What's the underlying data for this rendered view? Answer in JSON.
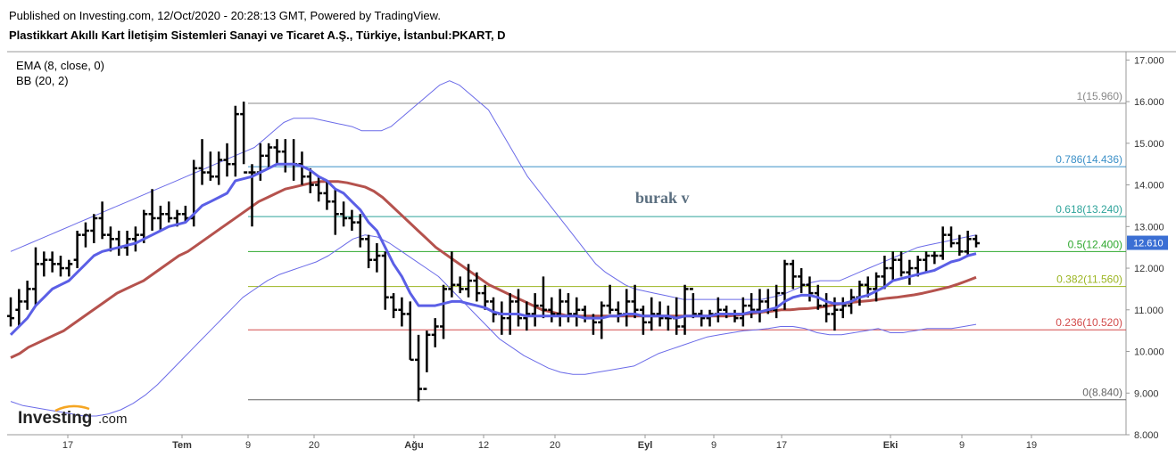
{
  "header": {
    "published": "Published on Investing.com, 12/Oct/2020 - 20:28:13 GMT, Powered by TradingView.",
    "title": "Plastikkart Akıllı Kart İletişim Sistemleri Sanayi ve Ticaret A.Ş., Türkiye, İstanbul:PKART, D"
  },
  "indicators": [
    "EMA (8, close, 0)",
    "BB (20, 2)"
  ],
  "logo": {
    "main": "Investing",
    "suffix": ".com"
  },
  "annotation": "burak v",
  "colors": {
    "price": "#000000",
    "ema": "#5b5fe6",
    "bb_mid": "#b5524d",
    "bb_band": "#6b6be8",
    "fib_1": "#888888",
    "fib_0786": "#3a8fc7",
    "fib_0618": "#2da39a",
    "fib_05": "#2ea82e",
    "fib_0382": "#9bb521",
    "fib_0236": "#d24a4a",
    "fib_0": "#666666",
    "last_price_bg": "#3b6fd4"
  },
  "chart_data": {
    "type": "ohlc",
    "title": "Plastikkart Akıllı Kart İletişim Sistemleri Sanayi ve Ticaret A.Ş., Türkiye, İstanbul:PKART, D",
    "x_ticks": [
      "17",
      "Tem",
      "9",
      "20",
      "Ağu",
      "12",
      "20",
      "Eyl",
      "9",
      "17",
      "Eki",
      "9",
      "19"
    ],
    "bold_x_ticks": [
      "Tem",
      "Ağu",
      "Eyl",
      "Eki"
    ],
    "ylim": [
      8.0,
      17.2
    ],
    "y_ticks": [
      "8.000",
      "9.000",
      "10.000",
      "11.000",
      "12.000",
      "13.000",
      "14.000",
      "15.000",
      "16.000",
      "17.000"
    ],
    "last_price": "12.610",
    "fibonacci": [
      {
        "label": "1(15.960)",
        "value": 15.96
      },
      {
        "label": "0.786(14.436)",
        "value": 14.436
      },
      {
        "label": "0.618(13.240)",
        "value": 13.24
      },
      {
        "label": "0.5(12.400)",
        "value": 12.4
      },
      {
        "label": "0.382(11.560)",
        "value": 11.56
      },
      {
        "label": "0.236(10.520)",
        "value": 10.52
      },
      {
        "label": "0(8.840)",
        "value": 8.84
      }
    ],
    "bars": [
      [
        10.85,
        10.6,
        11.3,
        10.8
      ],
      [
        11.0,
        10.6,
        11.5,
        11.2
      ],
      [
        11.2,
        11.0,
        11.7,
        11.5
      ],
      [
        11.5,
        11.1,
        12.5,
        12.1
      ],
      [
        12.1,
        11.8,
        12.4,
        12.2
      ],
      [
        12.2,
        11.9,
        12.4,
        12.1
      ],
      [
        12.1,
        11.8,
        12.3,
        12.0
      ],
      [
        12.0,
        11.8,
        12.2,
        12.1
      ],
      [
        12.2,
        12.0,
        12.9,
        12.8
      ],
      [
        12.8,
        12.5,
        13.1,
        12.9
      ],
      [
        12.9,
        12.6,
        13.3,
        13.2
      ],
      [
        13.2,
        12.7,
        13.6,
        12.8
      ],
      [
        12.8,
        12.4,
        13.0,
        12.7
      ],
      [
        12.7,
        12.3,
        12.9,
        12.5
      ],
      [
        12.5,
        12.3,
        12.9,
        12.7
      ],
      [
        12.7,
        12.4,
        13.0,
        12.8
      ],
      [
        12.8,
        12.6,
        13.4,
        13.3
      ],
      [
        13.3,
        12.9,
        13.9,
        13.2
      ],
      [
        13.2,
        12.9,
        13.5,
        13.3
      ],
      [
        13.3,
        13.1,
        13.6,
        13.2
      ],
      [
        13.2,
        13.0,
        13.4,
        13.3
      ],
      [
        13.3,
        13.1,
        13.5,
        13.2
      ],
      [
        13.2,
        13.0,
        14.6,
        14.4
      ],
      [
        14.4,
        14.0,
        15.1,
        14.3
      ],
      [
        14.3,
        14.1,
        14.8,
        14.2
      ],
      [
        14.2,
        14.0,
        14.8,
        14.6
      ],
      [
        14.6,
        14.2,
        15.0,
        14.5
      ],
      [
        14.5,
        14.2,
        15.9,
        15.7
      ],
      [
        15.7,
        14.5,
        16.0,
        14.3
      ],
      [
        14.3,
        13.0,
        14.5,
        14.3
      ],
      [
        14.3,
        14.1,
        15.0,
        14.7
      ],
      [
        14.7,
        14.4,
        15.0,
        14.9
      ],
      [
        14.9,
        14.5,
        15.1,
        14.8
      ],
      [
        14.8,
        14.3,
        15.1,
        14.5
      ],
      [
        14.5,
        14.1,
        15.1,
        14.5
      ],
      [
        14.5,
        14.0,
        14.8,
        14.2
      ],
      [
        14.2,
        13.8,
        14.4,
        14.0
      ],
      [
        14.0,
        13.6,
        14.2,
        13.8
      ],
      [
        13.8,
        13.4,
        14.1,
        13.6
      ],
      [
        13.6,
        12.8,
        13.9,
        13.3
      ],
      [
        13.3,
        13.0,
        13.6,
        13.2
      ],
      [
        13.2,
        12.9,
        13.4,
        13.1
      ],
      [
        13.1,
        12.5,
        13.3,
        12.7
      ],
      [
        12.7,
        12.0,
        12.8,
        12.2
      ],
      [
        12.2,
        11.9,
        12.6,
        12.3
      ],
      [
        12.3,
        11.0,
        12.4,
        11.3
      ],
      [
        11.3,
        10.8,
        11.4,
        11.0
      ],
      [
        11.0,
        10.6,
        11.3,
        10.9
      ],
      [
        10.9,
        9.8,
        11.2,
        9.8
      ],
      [
        9.8,
        8.8,
        10.4,
        9.1
      ],
      [
        9.1,
        9.5,
        10.5,
        10.4
      ],
      [
        10.4,
        10.1,
        10.8,
        10.6
      ],
      [
        10.6,
        10.3,
        11.6,
        11.5
      ],
      [
        11.5,
        11.3,
        12.4,
        11.6
      ],
      [
        11.6,
        11.4,
        11.8,
        11.5
      ],
      [
        11.5,
        11.3,
        12.1,
        11.7
      ],
      [
        11.7,
        11.2,
        11.9,
        11.4
      ],
      [
        11.4,
        11.0,
        11.6,
        11.2
      ],
      [
        11.2,
        10.7,
        11.3,
        10.9
      ],
      [
        10.9,
        10.4,
        11.2,
        10.8
      ],
      [
        10.8,
        10.4,
        11.4,
        11.2
      ],
      [
        11.2,
        10.6,
        11.5,
        10.8
      ],
      [
        10.8,
        10.5,
        11.2,
        10.9
      ],
      [
        10.9,
        10.6,
        11.4,
        11.1
      ],
      [
        11.1,
        10.8,
        11.8,
        11.0
      ],
      [
        11.0,
        10.7,
        11.3,
        10.9
      ],
      [
        10.9,
        10.6,
        11.5,
        11.2
      ],
      [
        11.2,
        10.7,
        11.4,
        10.9
      ],
      [
        10.9,
        10.6,
        11.3,
        11.0
      ],
      [
        11.0,
        10.7,
        11.1,
        10.8
      ],
      [
        10.8,
        10.4,
        10.9,
        10.7
      ],
      [
        10.7,
        10.3,
        11.2,
        11.1
      ],
      [
        11.1,
        10.9,
        11.6,
        11.0
      ],
      [
        11.0,
        10.7,
        11.2,
        10.9
      ],
      [
        10.9,
        10.6,
        11.5,
        11.2
      ],
      [
        11.2,
        10.8,
        11.6,
        11.0
      ],
      [
        11.0,
        10.4,
        11.1,
        10.7
      ],
      [
        10.7,
        10.5,
        11.3,
        10.9
      ],
      [
        10.9,
        10.6,
        11.2,
        10.8
      ],
      [
        10.8,
        10.5,
        11.1,
        10.8
      ],
      [
        10.8,
        10.4,
        11.3,
        10.6
      ],
      [
        10.6,
        10.4,
        11.6,
        11.5
      ],
      [
        11.5,
        10.8,
        11.4,
        10.9
      ],
      [
        10.9,
        10.6,
        11.0,
        10.8
      ],
      [
        10.8,
        10.6,
        11.0,
        10.9
      ],
      [
        10.9,
        10.7,
        11.3,
        11.0
      ],
      [
        11.0,
        10.8,
        11.1,
        10.9
      ],
      [
        10.9,
        10.7,
        11.0,
        10.8
      ],
      [
        10.8,
        10.6,
        11.3,
        11.1
      ],
      [
        11.1,
        10.8,
        11.4,
        11.0
      ],
      [
        11.0,
        10.7,
        11.5,
        11.2
      ],
      [
        11.2,
        10.9,
        11.5,
        11.0
      ],
      [
        11.0,
        10.8,
        11.6,
        11.4
      ],
      [
        11.4,
        11.0,
        12.2,
        12.1
      ],
      [
        12.1,
        11.5,
        12.2,
        11.8
      ],
      [
        11.8,
        11.4,
        12.0,
        11.6
      ],
      [
        11.6,
        11.2,
        11.8,
        11.4
      ],
      [
        11.4,
        11.0,
        11.6,
        11.1
      ],
      [
        11.1,
        10.7,
        11.4,
        10.9
      ],
      [
        10.9,
        10.5,
        11.3,
        11.0
      ],
      [
        11.0,
        10.8,
        11.3,
        11.1
      ],
      [
        11.1,
        10.9,
        11.5,
        11.3
      ],
      [
        11.3,
        11.1,
        11.7,
        11.6
      ],
      [
        11.6,
        11.3,
        11.8,
        11.5
      ],
      [
        11.5,
        11.2,
        11.9,
        11.8
      ],
      [
        11.8,
        11.5,
        12.3,
        12.0
      ],
      [
        12.0,
        11.7,
        12.4,
        12.2
      ],
      [
        12.2,
        11.8,
        12.4,
        11.9
      ],
      [
        11.9,
        11.6,
        12.2,
        12.0
      ],
      [
        12.0,
        11.8,
        12.3,
        12.2
      ],
      [
        12.2,
        11.9,
        12.4,
        12.3
      ],
      [
        12.3,
        12.1,
        12.4,
        12.3
      ],
      [
        12.3,
        12.2,
        13.0,
        12.8
      ],
      [
        12.8,
        12.5,
        13.0,
        12.6
      ],
      [
        12.6,
        12.3,
        12.8,
        12.4
      ],
      [
        12.4,
        12.3,
        12.9,
        12.7
      ],
      [
        12.7,
        12.5,
        12.8,
        12.6
      ]
    ],
    "ema": [
      10.4,
      10.6,
      10.8,
      11.1,
      11.3,
      11.5,
      11.6,
      11.7,
      11.9,
      12.1,
      12.3,
      12.4,
      12.45,
      12.5,
      12.55,
      12.6,
      12.7,
      12.8,
      12.9,
      13.0,
      13.05,
      13.1,
      13.3,
      13.5,
      13.6,
      13.7,
      13.8,
      14.1,
      14.15,
      14.2,
      14.3,
      14.4,
      14.5,
      14.5,
      14.5,
      14.45,
      14.35,
      14.2,
      14.1,
      13.9,
      13.8,
      13.6,
      13.4,
      13.1,
      12.9,
      12.5,
      12.1,
      11.8,
      11.4,
      11.1,
      11.1,
      11.1,
      11.15,
      11.2,
      11.2,
      11.15,
      11.1,
      11.05,
      10.95,
      10.9,
      10.9,
      10.9,
      10.85,
      10.85,
      10.85,
      10.85,
      10.85,
      10.85,
      10.85,
      10.8,
      10.8,
      10.8,
      10.85,
      10.85,
      10.9,
      10.9,
      10.85,
      10.85,
      10.85,
      10.85,
      10.8,
      10.85,
      10.85,
      10.85,
      10.85,
      10.9,
      10.9,
      10.9,
      10.9,
      10.95,
      10.95,
      11.0,
      11.05,
      11.2,
      11.3,
      11.35,
      11.35,
      11.3,
      11.2,
      11.15,
      11.15,
      11.2,
      11.3,
      11.35,
      11.45,
      11.55,
      11.7,
      11.75,
      11.8,
      11.85,
      11.9,
      11.95,
      12.05,
      12.15,
      12.2,
      12.3,
      12.35
    ],
    "bb_mid": [
      9.85,
      9.95,
      10.1,
      10.2,
      10.3,
      10.4,
      10.5,
      10.65,
      10.8,
      10.95,
      11.1,
      11.25,
      11.4,
      11.5,
      11.6,
      11.7,
      11.85,
      12.0,
      12.15,
      12.3,
      12.4,
      12.55,
      12.7,
      12.85,
      13.0,
      13.15,
      13.3,
      13.45,
      13.6,
      13.7,
      13.8,
      13.9,
      13.95,
      14.0,
      14.05,
      14.08,
      14.08,
      14.08,
      14.05,
      14.0,
      13.95,
      13.85,
      13.7,
      13.5,
      13.3,
      13.1,
      12.9,
      12.7,
      12.5,
      12.35,
      12.2,
      12.05,
      11.9,
      11.75,
      11.6,
      11.5,
      11.4,
      11.3,
      11.2,
      11.1,
      11.0,
      10.95,
      10.9,
      10.85,
      10.85,
      10.85,
      10.85,
      10.85,
      10.85,
      10.85,
      10.85,
      10.85,
      10.85,
      10.85,
      10.85,
      10.85,
      10.85,
      10.85,
      10.85,
      10.85,
      10.85,
      10.85,
      10.87,
      10.9,
      10.92,
      10.95,
      10.97,
      11.0,
      11.0,
      11.02,
      11.03,
      11.05,
      11.08,
      11.12,
      11.15,
      11.18,
      11.2,
      11.22,
      11.25,
      11.28,
      11.3,
      11.33,
      11.36,
      11.4,
      11.45,
      11.5,
      11.55,
      11.62,
      11.7,
      11.78
    ],
    "bb_upper": [
      12.4,
      12.5,
      12.6,
      12.7,
      12.8,
      12.9,
      13.0,
      13.1,
      13.2,
      13.3,
      13.4,
      13.5,
      13.6,
      13.7,
      13.8,
      13.9,
      14.0,
      14.1,
      14.2,
      14.3,
      14.4,
      14.5,
      14.6,
      14.7,
      14.8,
      14.9,
      15.1,
      15.3,
      15.5,
      15.6,
      15.6,
      15.6,
      15.55,
      15.5,
      15.45,
      15.4,
      15.3,
      15.3,
      15.3,
      15.4,
      15.6,
      15.8,
      16.0,
      16.2,
      16.4,
      16.5,
      16.4,
      16.2,
      16.0,
      15.8,
      15.4,
      15.0,
      14.6,
      14.2,
      13.9,
      13.6,
      13.3,
      13.0,
      12.7,
      12.4,
      12.1,
      11.9,
      11.75,
      11.6,
      11.5,
      11.45,
      11.4,
      11.35,
      11.3,
      11.25,
      11.25,
      11.25,
      11.25,
      11.25,
      11.25,
      11.25,
      11.25,
      11.25,
      11.3,
      11.35,
      11.45,
      11.55,
      11.65,
      11.7,
      11.7,
      11.7,
      11.8,
      11.9,
      12.0,
      12.1,
      12.2,
      12.3,
      12.4,
      12.5,
      12.55,
      12.6,
      12.65,
      12.7,
      12.75,
      12.8
    ],
    "bb_lower": [
      8.8,
      8.7,
      8.65,
      8.6,
      8.55,
      8.5,
      8.45,
      8.45,
      8.5,
      8.6,
      8.75,
      8.95,
      9.2,
      9.5,
      9.8,
      10.1,
      10.4,
      10.7,
      11.0,
      11.3,
      11.5,
      11.7,
      11.85,
      11.95,
      12.05,
      12.15,
      12.3,
      12.5,
      12.7,
      12.8,
      12.75,
      12.6,
      12.4,
      12.2,
      12.0,
      11.8,
      11.5,
      11.2,
      10.9,
      10.6,
      10.3,
      10.1,
      9.9,
      9.75,
      9.6,
      9.5,
      9.45,
      9.45,
      9.5,
      9.55,
      9.6,
      9.65,
      9.8,
      9.95,
      10.05,
      10.15,
      10.25,
      10.35,
      10.4,
      10.45,
      10.5,
      10.52,
      10.55,
      10.6,
      10.6,
      10.55,
      10.45,
      10.4,
      10.4,
      10.45,
      10.5,
      10.55,
      10.45,
      10.45,
      10.5,
      10.55,
      10.55,
      10.55,
      10.6,
      10.65
    ]
  }
}
